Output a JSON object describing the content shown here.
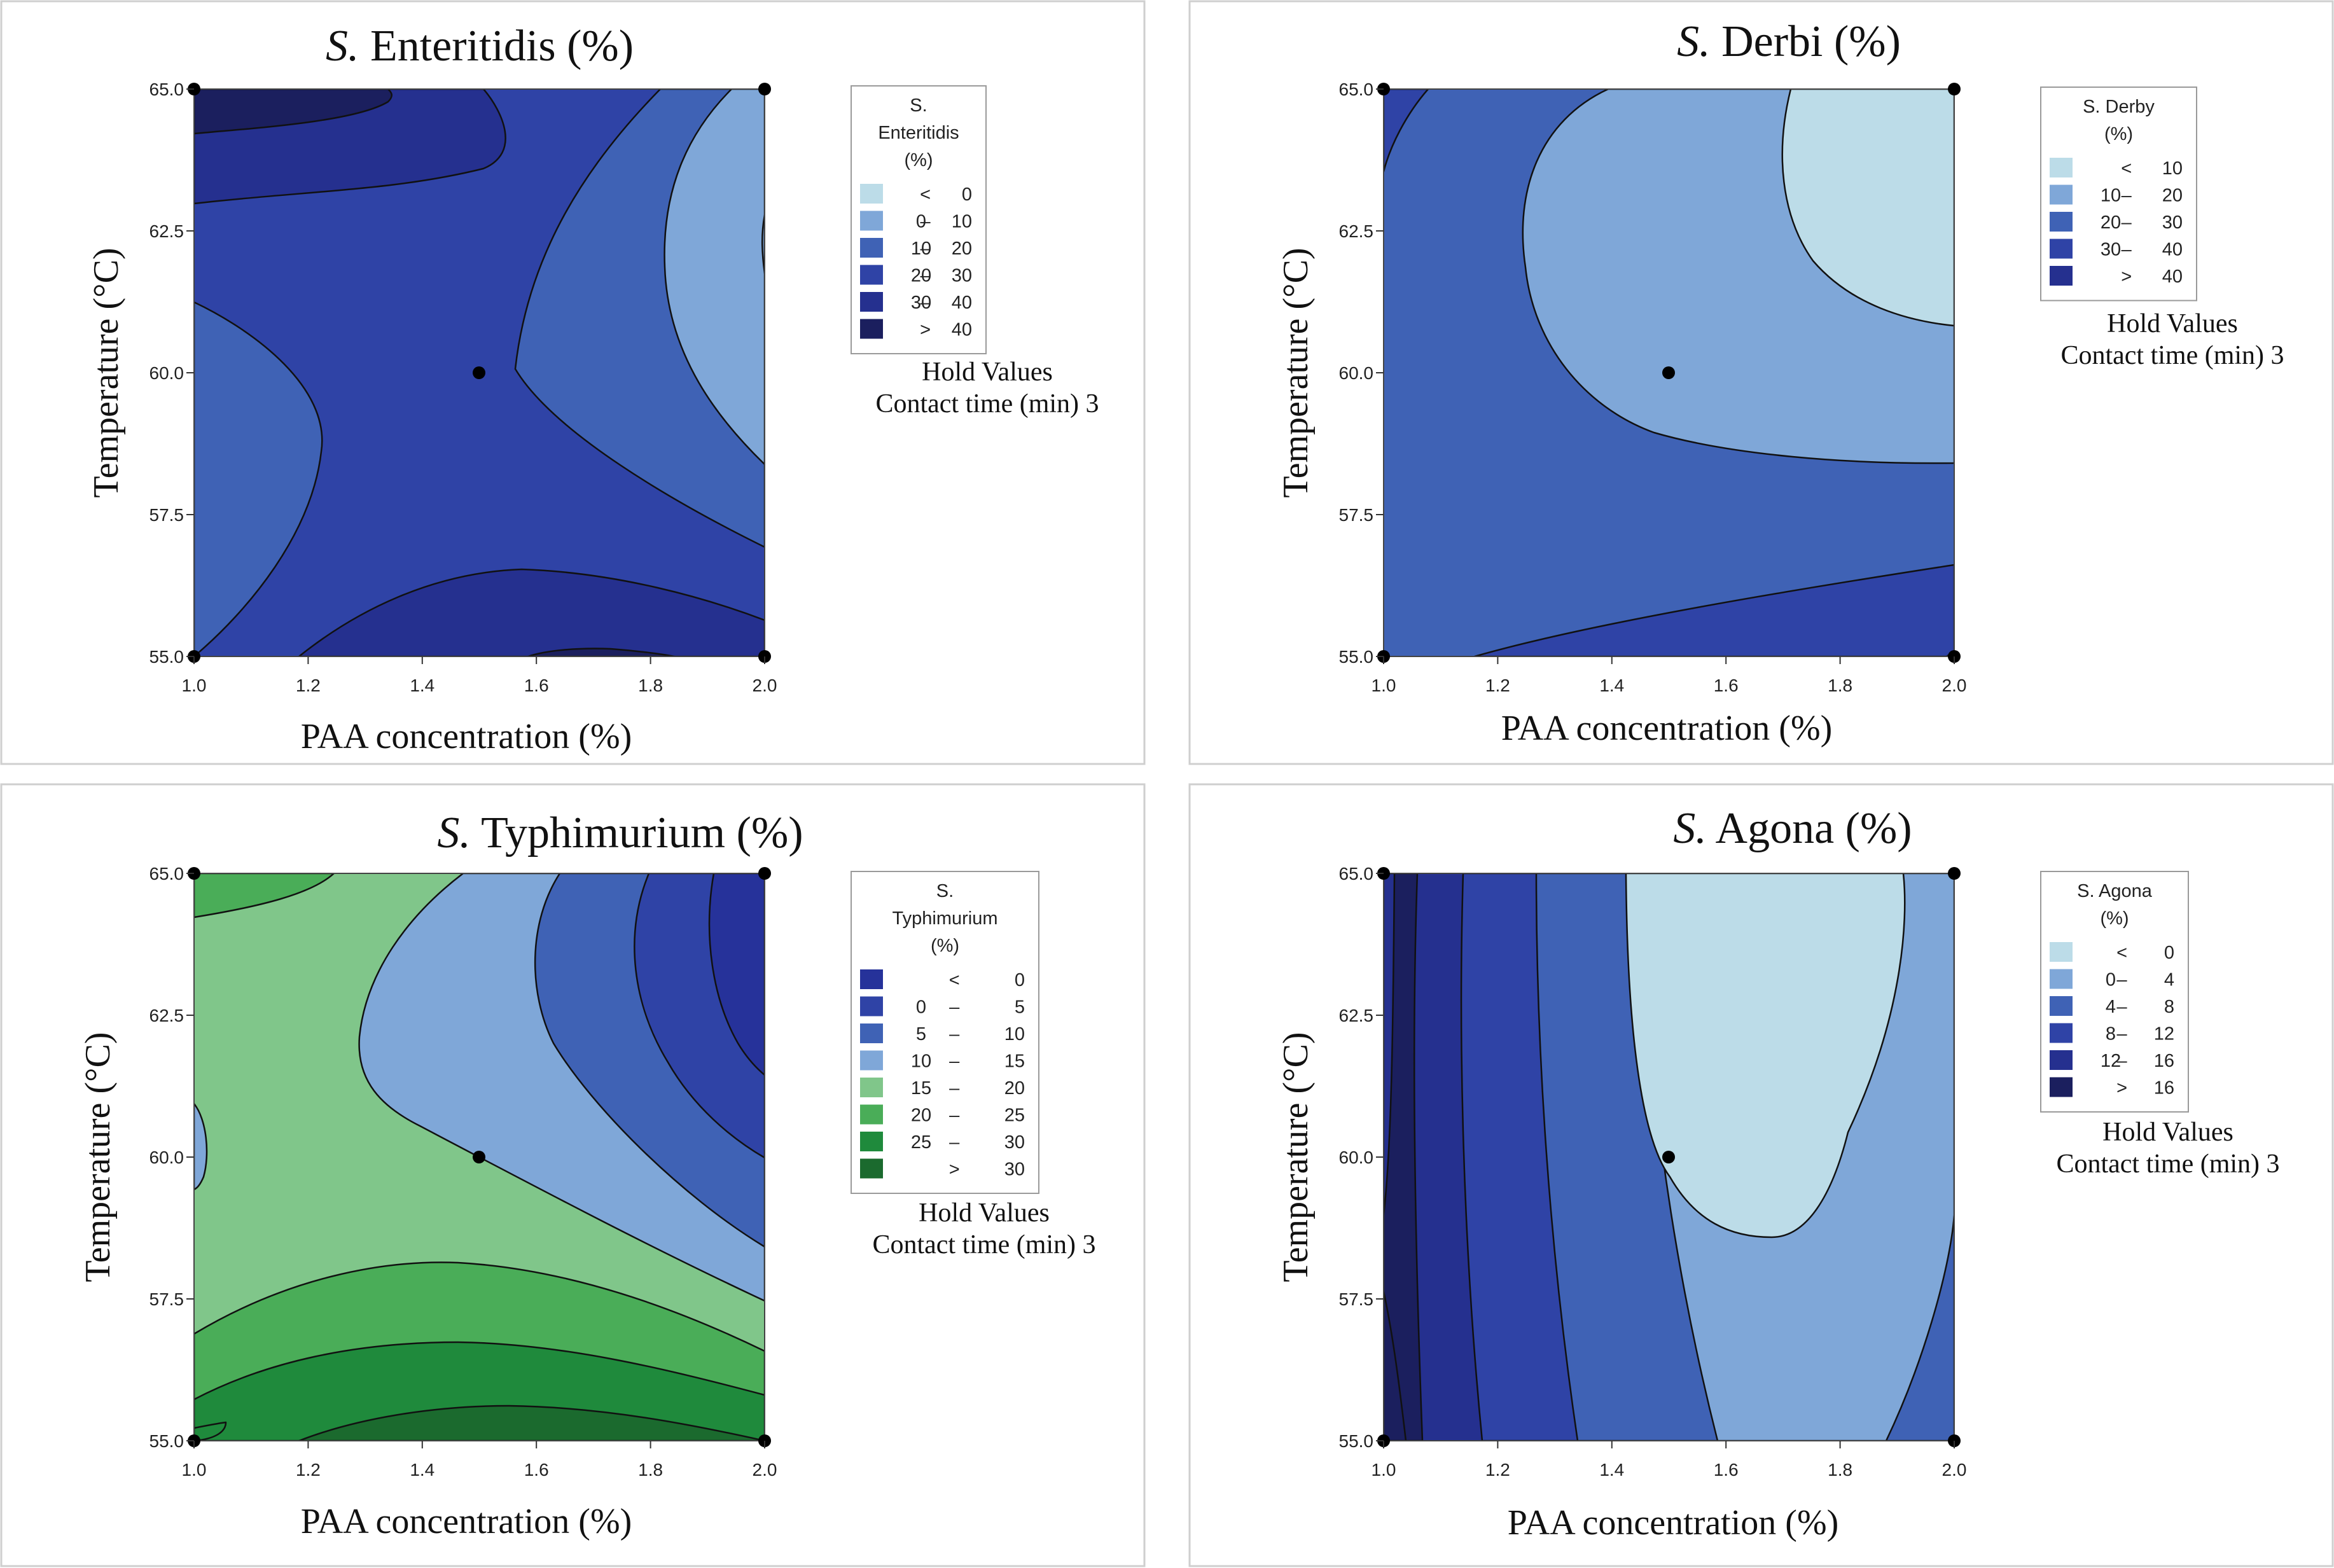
{
  "figure": {
    "hold_title": "Hold Values",
    "hold_value": "Contact time (min) 3"
  },
  "panels": [
    {
      "title_italic": "S.",
      "title_rest": " Enteritidis (%)",
      "legend_title": [
        "S.",
        "Enteritidis",
        "(%)"
      ],
      "legend_rows": [
        {
          "lo": "",
          "sep": "<",
          "hi": "0",
          "color": "#bcdce8"
        },
        {
          "lo": "0",
          "sep": "–",
          "hi": "10",
          "color": "#7fa7d8"
        },
        {
          "lo": "10",
          "sep": "–",
          "hi": "20",
          "color": "#3f62b5"
        },
        {
          "lo": "20",
          "sep": "–",
          "hi": "30",
          "color": "#2f43a6"
        },
        {
          "lo": "30",
          "sep": "–",
          "hi": "40",
          "color": "#25308f"
        },
        {
          "lo": "",
          "sep": ">",
          "hi": "40",
          "color": "#1b1f5e"
        }
      ]
    },
    {
      "title_italic": "S.",
      "title_rest": " Derbi (%)",
      "legend_title": [
        "S. Derby",
        "(%)"
      ],
      "legend_rows": [
        {
          "lo": "",
          "sep": "<",
          "hi": "10",
          "color": "#bcdce8"
        },
        {
          "lo": "10",
          "sep": "–",
          "hi": "20",
          "color": "#7fa7d8"
        },
        {
          "lo": "20",
          "sep": "–",
          "hi": "30",
          "color": "#3f62b5"
        },
        {
          "lo": "30",
          "sep": "–",
          "hi": "40",
          "color": "#2f43a6"
        },
        {
          "lo": "",
          "sep": ">",
          "hi": "40",
          "color": "#25308f"
        }
      ]
    },
    {
      "title_italic": "S.",
      "title_rest": " Typhimurium (%)",
      "legend_title": [
        "S.",
        "Typhimurium",
        "(%)"
      ],
      "legend_rows": [
        {
          "lo": "",
          "sep": "<",
          "hi": "0",
          "color": "#26329a"
        },
        {
          "lo": "0",
          "sep": "–",
          "hi": "5",
          "color": "#2f43a6"
        },
        {
          "lo": "5",
          "sep": "–",
          "hi": "10",
          "color": "#3f62b5"
        },
        {
          "lo": "10",
          "sep": "–",
          "hi": "15",
          "color": "#7fa7d8"
        },
        {
          "lo": "15",
          "sep": "–",
          "hi": "20",
          "color": "#80c68a"
        },
        {
          "lo": "20",
          "sep": "–",
          "hi": "25",
          "color": "#4aad58"
        },
        {
          "lo": "25",
          "sep": "–",
          "hi": "30",
          "color": "#1f8a3c"
        },
        {
          "lo": "",
          "sep": ">",
          "hi": "30",
          "color": "#1b6a2e"
        }
      ]
    },
    {
      "title_italic": "S.",
      "title_rest": " Agona (%)",
      "legend_title": [
        "S. Agona",
        "(%)"
      ],
      "legend_rows": [
        {
          "lo": "",
          "sep": "<",
          "hi": "0",
          "color": "#bcdce8"
        },
        {
          "lo": "0",
          "sep": "–",
          "hi": "4",
          "color": "#7fa7d8"
        },
        {
          "lo": "4",
          "sep": "–",
          "hi": "8",
          "color": "#3f62b5"
        },
        {
          "lo": "8",
          "sep": "–",
          "hi": "12",
          "color": "#2f43a6"
        },
        {
          "lo": "12",
          "sep": "–",
          "hi": "16",
          "color": "#25308f"
        },
        {
          "lo": "",
          "sep": ">",
          "hi": "16",
          "color": "#1b1f5e"
        }
      ]
    }
  ],
  "chart_data": [
    {
      "type": "contour",
      "title": "S. Enteritidis (%)",
      "xlabel": "PAA concentration (%)",
      "ylabel": "Temperature (°C)",
      "xlim": [
        1.0,
        2.0
      ],
      "ylim": [
        55.0,
        65.0
      ],
      "xticks": [
        "1.0",
        "1.2",
        "1.4",
        "1.6",
        "1.8",
        "2.0"
      ],
      "yticks": [
        "55.0",
        "57.5",
        "60.0",
        "62.5",
        "65.0"
      ],
      "design_points": [
        [
          1.0,
          55.0
        ],
        [
          2.0,
          55.0
        ],
        [
          1.0,
          65.0
        ],
        [
          2.0,
          65.0
        ],
        [
          1.5,
          60.0
        ]
      ],
      "levels": [
        "< 0",
        "0 – 10",
        "10 – 20",
        "20 – 30",
        "30 – 40",
        "> 40"
      ],
      "hold": "Contact time (min) 3"
    },
    {
      "type": "contour",
      "title": "S. Derbi (%)",
      "xlabel": "PAA concentration (%)",
      "ylabel": "Temperature (°C)",
      "xlim": [
        1.0,
        2.0
      ],
      "ylim": [
        55.0,
        65.0
      ],
      "xticks": [
        "1.0",
        "1.2",
        "1.4",
        "1.6",
        "1.8",
        "2.0"
      ],
      "yticks": [
        "55.0",
        "57.5",
        "60.0",
        "62.5",
        "65.0"
      ],
      "design_points": [
        [
          1.0,
          55.0
        ],
        [
          2.0,
          55.0
        ],
        [
          1.0,
          65.0
        ],
        [
          2.0,
          65.0
        ],
        [
          1.5,
          60.0
        ]
      ],
      "levels": [
        "< 10",
        "10 – 20",
        "20 – 30",
        "30 – 40",
        "> 40"
      ],
      "hold": "Contact time (min) 3"
    },
    {
      "type": "contour",
      "title": "S. Typhimurium (%)",
      "xlabel": "PAA concentration (%)",
      "ylabel": "Temperature (°C)",
      "xlim": [
        1.0,
        2.0
      ],
      "ylim": [
        55.0,
        65.0
      ],
      "xticks": [
        "1.0",
        "1.2",
        "1.4",
        "1.6",
        "1.8",
        "2.0"
      ],
      "yticks": [
        "55.0",
        "57.5",
        "60.0",
        "62.5",
        "65.0"
      ],
      "design_points": [
        [
          1.0,
          55.0
        ],
        [
          2.0,
          55.0
        ],
        [
          1.0,
          65.0
        ],
        [
          2.0,
          65.0
        ],
        [
          1.5,
          60.0
        ]
      ],
      "levels": [
        "< 0",
        "0 – 5",
        "5 – 10",
        "10 – 15",
        "15 – 20",
        "20 – 25",
        "25 – 30",
        "> 30"
      ],
      "hold": "Contact time (min) 3"
    },
    {
      "type": "contour",
      "title": "S. Agona (%)",
      "xlabel": "PAA concentration (%)",
      "ylabel": "Temperature (°C)",
      "xlim": [
        1.0,
        2.0
      ],
      "ylim": [
        55.0,
        65.0
      ],
      "xticks": [
        "1.0",
        "1.2",
        "1.4",
        "1.6",
        "1.8",
        "2.0"
      ],
      "yticks": [
        "55.0",
        "57.5",
        "60.0",
        "62.5",
        "65.0"
      ],
      "design_points": [
        [
          1.0,
          55.0
        ],
        [
          2.0,
          55.0
        ],
        [
          1.0,
          65.0
        ],
        [
          2.0,
          65.0
        ],
        [
          1.5,
          60.0
        ]
      ],
      "levels": [
        "< 0",
        "0 – 4",
        "4 – 8",
        "8 – 12",
        "12 – 16",
        "> 16"
      ],
      "hold": "Contact time (min) 3"
    }
  ]
}
